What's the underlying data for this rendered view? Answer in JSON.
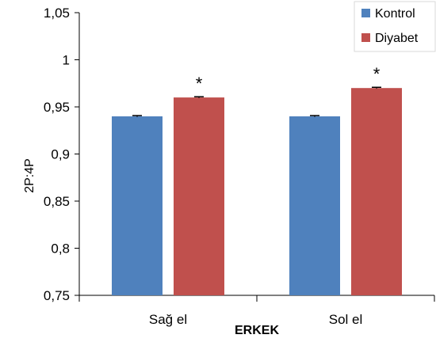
{
  "chart_data": {
    "type": "bar",
    "ylabel": "2P:4P",
    "xlabel": "ERKEK",
    "categories": [
      "Sağ el",
      "Sol el"
    ],
    "series": [
      {
        "name": "Kontrol",
        "values": [
          0.94,
          0.94
        ],
        "color": "#4f81bd",
        "error": [
          0.0008,
          0.0008
        ]
      },
      {
        "name": "Diyabet",
        "values": [
          0.96,
          0.97
        ],
        "color": "#c0504d",
        "error": [
          0.0008,
          0.0008
        ]
      }
    ],
    "ylim": [
      0.75,
      1.05
    ],
    "yticks": [
      1.05,
      1,
      0.95,
      0.9,
      0.85,
      0.8,
      0.75
    ],
    "ytick_labels": [
      "1,05",
      "1",
      "0,95",
      "0,9",
      "0,85",
      "0,8",
      "0,75"
    ],
    "significance": [
      {
        "category": "Sağ el",
        "series": "Diyabet",
        "label": "*"
      },
      {
        "category": "Sol el",
        "series": "Diyabet",
        "label": "*"
      }
    ],
    "legend": {
      "position": "top-right",
      "entries": [
        "Kontrol",
        "Diyabet"
      ]
    },
    "grid": false
  }
}
